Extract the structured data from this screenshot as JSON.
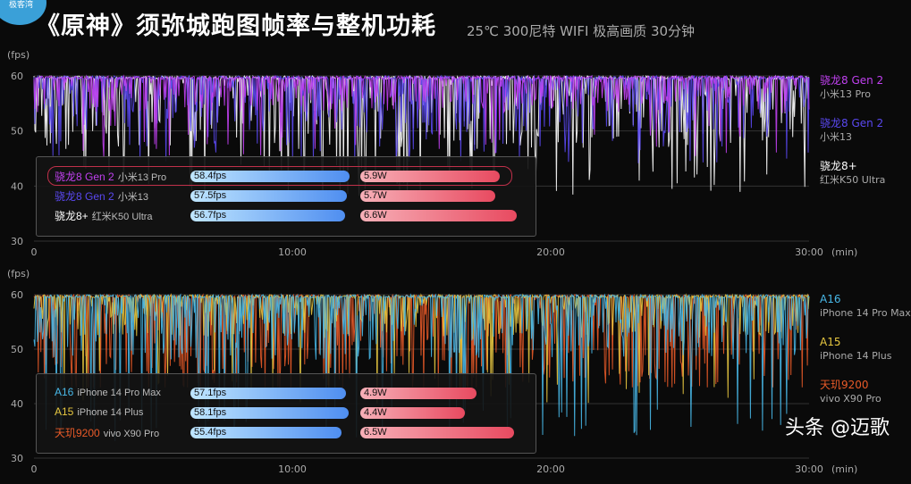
{
  "logo": "极客湾",
  "title": "《原神》须弥城跑图帧率与整机功耗",
  "subtitle": "25℃ 300尼特 WIFI 极高画质 30分钟",
  "watermark": "头条 @迈歌",
  "chart_data": [
    {
      "type": "line",
      "ylabel": "(fps)",
      "xlabel": "(min)",
      "ylim": [
        30,
        60
      ],
      "xlim": [
        0,
        30
      ],
      "yticks": [
        "30",
        "40",
        "50",
        "60"
      ],
      "xticks": [
        "0",
        "10:00",
        "20:00",
        "30:00"
      ],
      "series": [
        {
          "chip": "骁龙8 Gen 2",
          "device": "小米13 Pro",
          "avg_fps": 58.4,
          "fps_label": "58.4fps",
          "power": 5.9,
          "power_label": "5.9W",
          "color": "#c040f0",
          "min_fps": 45,
          "highlight": true
        },
        {
          "chip": "骁龙8 Gen 2",
          "device": "小米13",
          "avg_fps": 57.5,
          "fps_label": "57.5fps",
          "power": 5.7,
          "power_label": "5.7W",
          "color": "#5a48f0",
          "min_fps": 44
        },
        {
          "chip": "骁龙8+",
          "device": "红米K50 Ultra",
          "avg_fps": 56.7,
          "fps_label": "56.7fps",
          "power": 6.6,
          "power_label": "6.6W",
          "color": "#ffffff",
          "min_fps": 38
        }
      ]
    },
    {
      "type": "line",
      "ylabel": "(fps)",
      "xlabel": "(min)",
      "ylim": [
        30,
        60
      ],
      "xlim": [
        0,
        30
      ],
      "yticks": [
        "30",
        "40",
        "50",
        "60"
      ],
      "xticks": [
        "0",
        "10:00",
        "20:00",
        "30:00"
      ],
      "series": [
        {
          "chip": "A16",
          "device": "iPhone 14 Pro Max",
          "avg_fps": 57.1,
          "fps_label": "57.1fps",
          "power": 4.9,
          "power_label": "4.9W",
          "color": "#48b8e8",
          "min_fps": 33
        },
        {
          "chip": "A15",
          "device": "iPhone 14 Plus",
          "avg_fps": 58.1,
          "fps_label": "58.1fps",
          "power": 4.4,
          "power_label": "4.4W",
          "color": "#e8c840",
          "min_fps": 40
        },
        {
          "chip": "天玑9200",
          "device": "vivo X90 Pro",
          "avg_fps": 55.4,
          "fps_label": "55.4fps",
          "power": 6.5,
          "power_label": "6.5W",
          "color": "#e85a28",
          "min_fps": 43
        }
      ]
    }
  ]
}
